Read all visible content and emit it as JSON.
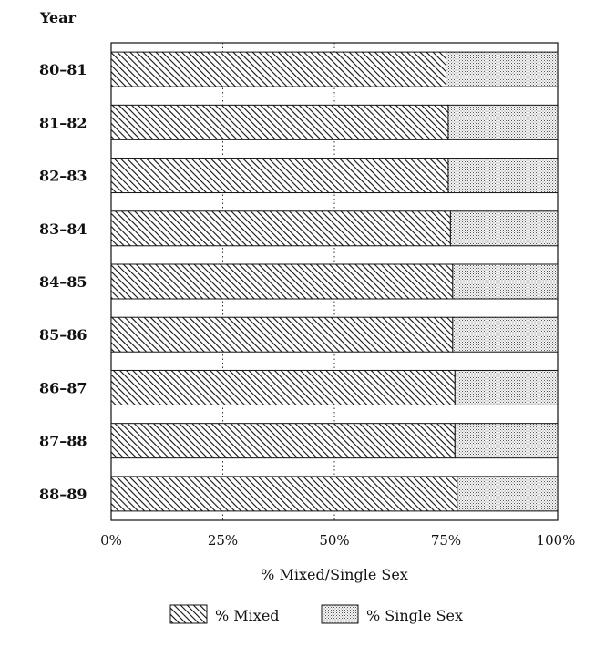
{
  "chart_data": {
    "type": "bar",
    "orientation": "horizontal",
    "stacked": true,
    "y_axis_title": "Year",
    "xlabel": "% Mixed/Single Sex",
    "categories": [
      "80-81",
      "81-82",
      "82-83",
      "83-84",
      "84-85",
      "85-86",
      "86-87",
      "87-88",
      "88-89"
    ],
    "x_ticks": [
      "0%",
      "25%",
      "50%",
      "75%",
      "100%"
    ],
    "xlim": [
      0,
      100
    ],
    "grid": "vertical dotted",
    "legend_position": "bottom",
    "series": [
      {
        "name": "% Mixed",
        "values": [
          75,
          75.5,
          75.5,
          76,
          76.5,
          76.5,
          77,
          77,
          77.5
        ],
        "pattern": "diagonal-hatch"
      },
      {
        "name": "% Single Sex",
        "values": [
          25,
          24.5,
          24.5,
          24,
          23.5,
          23.5,
          23,
          23,
          22.5
        ],
        "pattern": "stipple"
      }
    ],
    "colors": {
      "ink": "#111111",
      "background": "#ffffff",
      "stipple": "#d6d6d6"
    }
  }
}
